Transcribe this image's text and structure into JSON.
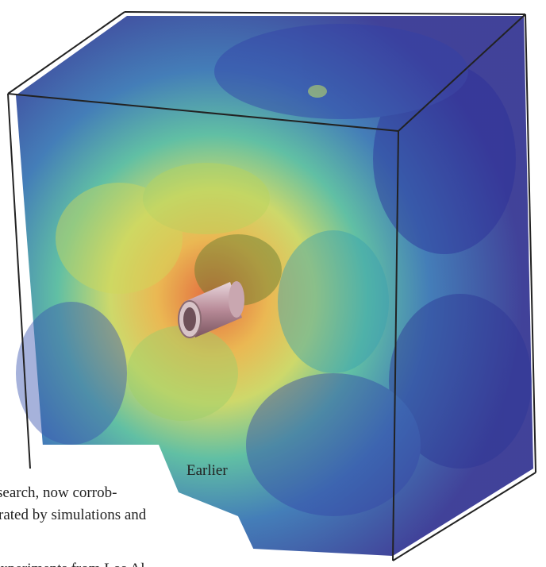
{
  "caption": {
    "lines": [
      "Earlier",
      "search, now corrob-",
      "rated by simulations and",
      "experiments from Los Al"
    ]
  }
}
